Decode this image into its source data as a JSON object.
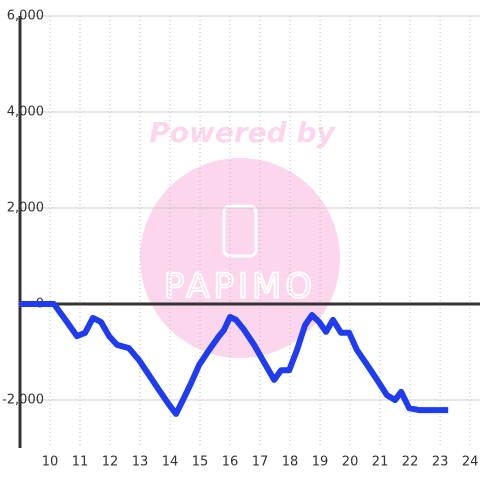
{
  "chart_data": {
    "type": "line",
    "watermark": [
      "Powered by",
      "PAPIMO"
    ],
    "x": [
      8.97,
      10.13,
      10.47,
      10.9,
      11.17,
      11.43,
      11.7,
      11.97,
      12.23,
      12.63,
      12.97,
      13.3,
      13.63,
      13.97,
      14.2,
      14.43,
      14.7,
      14.97,
      15.3,
      15.63,
      15.8,
      16.0,
      16.2,
      16.47,
      16.8,
      17.13,
      17.47,
      17.7,
      17.97,
      18.23,
      18.5,
      18.73,
      18.97,
      19.2,
      19.43,
      19.7,
      19.97,
      20.23,
      20.57,
      20.9,
      21.23,
      21.5,
      21.7,
      21.97,
      22.3,
      23.27
    ],
    "series": [
      {
        "color": "#1f3cf0",
        "values": [
          0,
          0,
          -290,
          -670,
          -600,
          -290,
          -375,
          -670,
          -850,
          -920,
          -1170,
          -1480,
          -1790,
          -2100,
          -2290,
          -2000,
          -1650,
          -1270,
          -960,
          -670,
          -540,
          -270,
          -330,
          -540,
          -850,
          -1210,
          -1580,
          -1380,
          -1380,
          -960,
          -440,
          -230,
          -375,
          -580,
          -330,
          -600,
          -600,
          -960,
          -1270,
          -1580,
          -1900,
          -2000,
          -1830,
          -2170,
          -2210,
          -2210
        ]
      }
    ],
    "xlim": [
      9,
      24.33
    ],
    "ylim": [
      -3000,
      6000
    ],
    "xticks": [
      10,
      11,
      12,
      13,
      14,
      15,
      16,
      17,
      18,
      19,
      20,
      21,
      22,
      23,
      24
    ],
    "yticks": [
      {
        "value": 6000,
        "label": "6,000"
      },
      {
        "value": 4000,
        "label": "4,000"
      },
      {
        "value": 2000,
        "label": "2,000"
      },
      0,
      {
        "value": -2000,
        "label": "-2,000"
      }
    ],
    "grid": true
  }
}
